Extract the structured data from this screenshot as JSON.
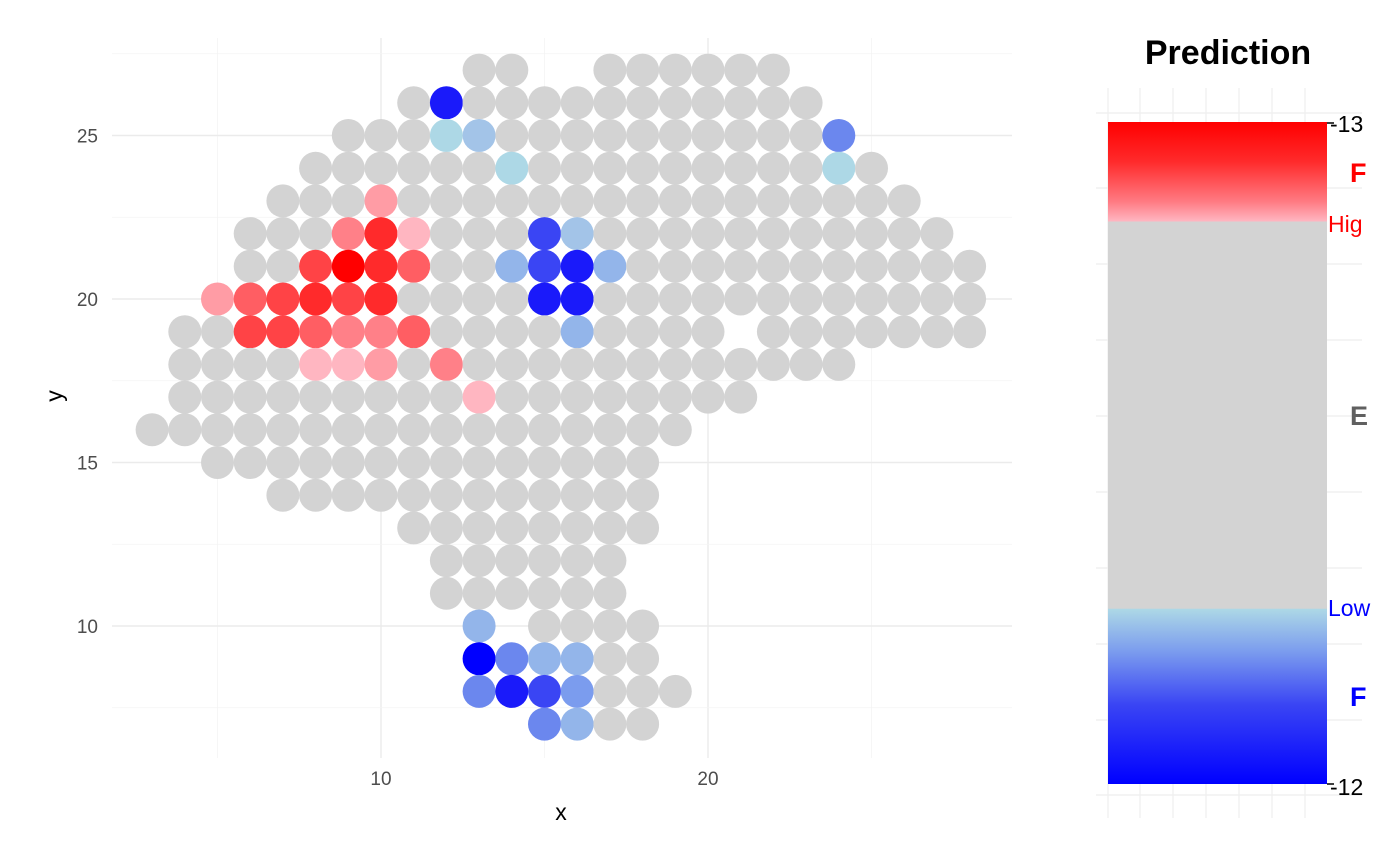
{
  "chart_data": {
    "type": "scatter",
    "title": "",
    "xlabel": "x",
    "ylabel": "y",
    "xlim": [
      2,
      29.5
    ],
    "ylim": [
      6.5,
      27.5
    ],
    "x_ticks": [
      10,
      20
    ],
    "y_ticks": [
      10,
      15,
      20,
      25
    ],
    "grid": true,
    "colors": {
      "grey": "#D3D3D3",
      "light_blue": "#ADD8E6",
      "pale_blue": "#A3C4E8",
      "blue1": "#93B5EA",
      "blue2": "#7B9CEE",
      "blue3": "#6B87EE",
      "blue4": "#3A45F4",
      "blue5": "#1A1AFA",
      "blue6": "#0000FF",
      "pink0": "#FFB6C1",
      "pink1": "#FF9CA5",
      "red1": "#FF8088",
      "red2": "#FF5E63",
      "red3": "#FF4346",
      "red4": "#FF2A2B",
      "red5": "#FF0000"
    },
    "default_color": "grey",
    "rows": [
      {
        "y": 27,
        "x_ranges": [
          [
            13,
            14
          ],
          [
            17,
            22
          ]
        ]
      },
      {
        "y": 26,
        "x_ranges": [
          [
            11,
            23
          ]
        ]
      },
      {
        "y": 25,
        "x_ranges": [
          [
            9,
            24
          ]
        ]
      },
      {
        "y": 24,
        "x_ranges": [
          [
            8,
            25
          ]
        ]
      },
      {
        "y": 23,
        "x_ranges": [
          [
            7,
            26
          ]
        ]
      },
      {
        "y": 22,
        "x_ranges": [
          [
            6,
            27
          ]
        ]
      },
      {
        "y": 21,
        "x_ranges": [
          [
            6,
            28
          ]
        ]
      },
      {
        "y": 20,
        "x_ranges": [
          [
            5,
            28
          ]
        ]
      },
      {
        "y": 19,
        "x_ranges": [
          [
            4,
            20
          ],
          [
            22,
            28
          ]
        ]
      },
      {
        "y": 18,
        "x_ranges": [
          [
            4,
            24
          ]
        ]
      },
      {
        "y": 17,
        "x_ranges": [
          [
            4,
            21
          ]
        ]
      },
      {
        "y": 16,
        "x_ranges": [
          [
            3,
            19
          ]
        ]
      },
      {
        "y": 15,
        "x_ranges": [
          [
            5,
            18
          ]
        ]
      },
      {
        "y": 14,
        "x_ranges": [
          [
            7,
            18
          ]
        ]
      },
      {
        "y": 13,
        "x_ranges": [
          [
            11,
            18
          ]
        ]
      },
      {
        "y": 12,
        "x_ranges": [
          [
            12,
            17
          ]
        ]
      },
      {
        "y": 11,
        "x_ranges": [
          [
            12,
            17
          ]
        ]
      },
      {
        "y": 10,
        "x_ranges": [
          [
            13,
            13
          ],
          [
            15,
            18
          ]
        ]
      },
      {
        "y": 9,
        "x_ranges": [
          [
            13,
            18
          ]
        ]
      },
      {
        "y": 8,
        "x_ranges": [
          [
            13,
            19
          ]
        ]
      },
      {
        "y": 7,
        "x_ranges": [
          [
            15,
            18
          ]
        ]
      }
    ],
    "colored_points": [
      {
        "x": 12,
        "y": 26,
        "c": "blue5"
      },
      {
        "x": 12,
        "y": 25,
        "c": "light_blue"
      },
      {
        "x": 13,
        "y": 25,
        "c": "pale_blue"
      },
      {
        "x": 24,
        "y": 25,
        "c": "blue3"
      },
      {
        "x": 14,
        "y": 24,
        "c": "light_blue"
      },
      {
        "x": 24,
        "y": 24,
        "c": "light_blue"
      },
      {
        "x": 10,
        "y": 23,
        "c": "pink1"
      },
      {
        "x": 9,
        "y": 22,
        "c": "red1"
      },
      {
        "x": 10,
        "y": 22,
        "c": "red4"
      },
      {
        "x": 11,
        "y": 22,
        "c": "pink0"
      },
      {
        "x": 15,
        "y": 22,
        "c": "blue4"
      },
      {
        "x": 16,
        "y": 22,
        "c": "pale_blue"
      },
      {
        "x": 8,
        "y": 21,
        "c": "red3"
      },
      {
        "x": 9,
        "y": 21,
        "c": "red5"
      },
      {
        "x": 10,
        "y": 21,
        "c": "red4"
      },
      {
        "x": 11,
        "y": 21,
        "c": "red2"
      },
      {
        "x": 14,
        "y": 21,
        "c": "blue1"
      },
      {
        "x": 15,
        "y": 21,
        "c": "blue4"
      },
      {
        "x": 16,
        "y": 21,
        "c": "blue5"
      },
      {
        "x": 17,
        "y": 21,
        "c": "blue1"
      },
      {
        "x": 5,
        "y": 20,
        "c": "pink1"
      },
      {
        "x": 6,
        "y": 20,
        "c": "red2"
      },
      {
        "x": 7,
        "y": 20,
        "c": "red3"
      },
      {
        "x": 8,
        "y": 20,
        "c": "red4"
      },
      {
        "x": 9,
        "y": 20,
        "c": "red3"
      },
      {
        "x": 10,
        "y": 20,
        "c": "red4"
      },
      {
        "x": 15,
        "y": 20,
        "c": "blue5"
      },
      {
        "x": 16,
        "y": 20,
        "c": "blue5"
      },
      {
        "x": 6,
        "y": 19,
        "c": "red3"
      },
      {
        "x": 7,
        "y": 19,
        "c": "red3"
      },
      {
        "x": 8,
        "y": 19,
        "c": "red2"
      },
      {
        "x": 9,
        "y": 19,
        "c": "red1"
      },
      {
        "x": 10,
        "y": 19,
        "c": "red1"
      },
      {
        "x": 11,
        "y": 19,
        "c": "red2"
      },
      {
        "x": 16,
        "y": 19,
        "c": "blue1"
      },
      {
        "x": 8,
        "y": 18,
        "c": "pink0"
      },
      {
        "x": 9,
        "y": 18,
        "c": "pink0"
      },
      {
        "x": 10,
        "y": 18,
        "c": "pink1"
      },
      {
        "x": 12,
        "y": 18,
        "c": "red1"
      },
      {
        "x": 13,
        "y": 17,
        "c": "pink0"
      },
      {
        "x": 13,
        "y": 10,
        "c": "blue1"
      },
      {
        "x": 13,
        "y": 9,
        "c": "blue6"
      },
      {
        "x": 14,
        "y": 9,
        "c": "blue3"
      },
      {
        "x": 15,
        "y": 9,
        "c": "blue1"
      },
      {
        "x": 16,
        "y": 9,
        "c": "blue1"
      },
      {
        "x": 13,
        "y": 8,
        "c": "blue3"
      },
      {
        "x": 14,
        "y": 8,
        "c": "blue5"
      },
      {
        "x": 15,
        "y": 8,
        "c": "blue4"
      },
      {
        "x": 16,
        "y": 8,
        "c": "blue2"
      },
      {
        "x": 15,
        "y": 7,
        "c": "blue3"
      },
      {
        "x": 16,
        "y": 7,
        "c": "blue1"
      }
    ],
    "legend": {
      "title": "Prediction",
      "placement": "right",
      "max_label": "-13",
      "min_label": "-12",
      "high_label": "Hig",
      "low_label": "Low",
      "top_bold_label": "F",
      "middle_bold_label": "E",
      "bottom_bold_label": "F",
      "high_color": "#FF0000",
      "low_color": "#0000FF",
      "mid_color": "#D3D3D3",
      "middle_text_color": "#606060"
    }
  }
}
